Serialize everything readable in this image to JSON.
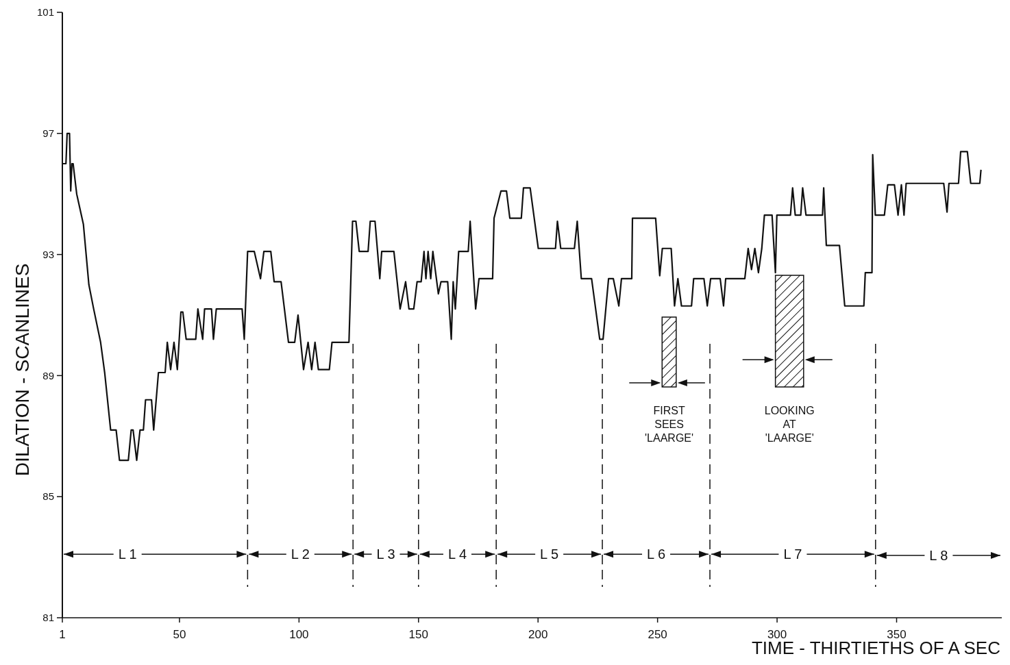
{
  "chart_data": {
    "type": "line",
    "xlabel": "TIME - THIRTIETHS OF A SEC",
    "ylabel": "DILATION - SCANLINES",
    "xlim": [
      1,
      394
    ],
    "xticks": [
      1,
      50,
      100,
      150,
      200,
      250,
      300,
      350
    ],
    "ylim": [
      81,
      101
    ],
    "yticks": [
      81,
      85,
      89,
      93,
      97,
      101
    ],
    "marker": "none",
    "line_style": "solid",
    "series": [
      {
        "color": "#111111",
        "x": [
          1,
          2.5,
          3,
          4,
          4.5,
          5,
          5.5,
          7,
          9.8,
          12.1,
          14.1,
          17,
          18.7,
          21.2,
          23.5,
          24.9,
          28.6,
          29.8,
          30.6,
          32.1,
          33.5,
          34.9,
          35.8,
          38.3,
          39.2,
          41.2,
          44,
          44.9,
          46.3,
          47.7,
          49.1,
          50.6,
          51.4,
          52.8,
          56.8,
          57.7,
          59.7,
          60.5,
          63.4,
          64.2,
          65.4,
          76.2,
          77.1,
          78.5,
          81.3,
          83.9,
          85.3,
          88.2,
          89.6,
          92.5,
          93.9,
          95.6,
          98.2,
          99.6,
          101.9,
          103.8,
          105.3,
          106.7,
          108.1,
          112.7,
          113.8,
          120.9,
          122.4,
          123.8,
          125.2,
          128.9,
          129.8,
          131.8,
          133.8,
          134.6,
          139.7,
          142.3,
          144.6,
          146,
          148,
          149.4,
          151.1,
          152.3,
          153.1,
          154,
          155.1,
          156,
          158.3,
          159.4,
          162.2,
          163.7,
          164.5,
          165.4,
          166.8,
          170.8,
          171.6,
          173.9,
          175.3,
          181,
          181.6,
          184.5,
          186.8,
          188.2,
          193,
          193.9,
          196.7,
          200.1,
          207.3,
          208.1,
          209.5,
          215.2,
          216.4,
          218.1,
          222.4,
          225.8,
          227.2,
          229.5,
          231.5,
          233.8,
          234.9,
          239.2,
          239.5,
          249.2,
          250.9,
          252,
          255.7,
          257.1,
          258.5,
          260,
          264.2,
          265.1,
          269.4,
          270.8,
          272.2,
          276.2,
          277.6,
          278.5,
          286.5,
          287.9,
          289.3,
          290.7,
          292.2,
          293.6,
          294.7,
          297.9,
          299.3,
          299.9,
          305.6,
          306.5,
          307.6,
          309.9,
          310.7,
          312.1,
          319,
          319.5,
          320.6,
          326.1,
          328.3,
          336.3,
          336.9,
          339.7,
          340,
          341.1,
          344.9,
          346.3,
          349.1,
          350.6,
          352,
          353.1,
          354,
          369.7,
          371.1,
          371.9,
          375.9,
          376.8,
          379.6,
          381,
          384.8,
          385.3
        ],
        "values": [
          96,
          96,
          97,
          97,
          95.1,
          96,
          96,
          95,
          94,
          92,
          91.2,
          90.1,
          89.1,
          87.2,
          87.2,
          86.2,
          86.2,
          87.2,
          87.2,
          86.2,
          87.2,
          87.2,
          88.2,
          88.2,
          87.2,
          89.1,
          89.1,
          90.1,
          89.2,
          90.1,
          89.2,
          91.1,
          91.1,
          90.2,
          90.2,
          91.2,
          90.2,
          91.2,
          91.2,
          90.2,
          91.2,
          91.2,
          90.2,
          93.1,
          93.1,
          92.2,
          93.1,
          93.1,
          92.1,
          92.1,
          91.2,
          90.1,
          90.1,
          91,
          89.2,
          90.1,
          89.2,
          90.1,
          89.2,
          89.2,
          90.1,
          90.1,
          94.1,
          94.1,
          93.1,
          93.1,
          94.1,
          94.1,
          92.2,
          93.1,
          93.1,
          91.2,
          92.1,
          91.2,
          91.2,
          92.1,
          92.1,
          93.1,
          92.2,
          93.1,
          92.2,
          93.1,
          91.7,
          92.1,
          92.1,
          90.2,
          92.1,
          91.2,
          93.1,
          93.1,
          94.1,
          91.2,
          92.2,
          92.2,
          94.2,
          95.1,
          95.1,
          94.2,
          94.2,
          95.2,
          95.2,
          93.2,
          93.2,
          94.1,
          93.2,
          93.2,
          94.1,
          92.2,
          92.2,
          90.2,
          90.2,
          92.2,
          92.2,
          91.3,
          92.2,
          92.2,
          94.2,
          94.2,
          92.3,
          93.2,
          93.2,
          91.3,
          92.2,
          91.3,
          91.3,
          92.2,
          92.2,
          91.3,
          92.2,
          92.2,
          91.3,
          92.2,
          92.2,
          93.2,
          92.5,
          93.2,
          92.4,
          93.2,
          94.3,
          94.3,
          92.4,
          94.3,
          94.3,
          95.2,
          94.3,
          94.3,
          95.2,
          94.3,
          94.3,
          95.2,
          93.3,
          93.3,
          91.3,
          91.3,
          92.4,
          92.4,
          96.3,
          94.3,
          94.3,
          95.3,
          95.3,
          94.3,
          95.3,
          94.3,
          95.35,
          95.35,
          94.4,
          95.35,
          95.35,
          96.4,
          96.4,
          95.35,
          95.35,
          95.8
        ]
      }
    ],
    "ref_lines": [
      {
        "axis": "x",
        "value": 78.5,
        "line_style": "dashed"
      },
      {
        "axis": "x",
        "value": 122.6,
        "line_style": "dashed"
      },
      {
        "axis": "x",
        "value": 150,
        "line_style": "dashed"
      },
      {
        "axis": "x",
        "value": 182.5,
        "line_style": "dashed"
      },
      {
        "axis": "x",
        "value": 226.9,
        "line_style": "dashed"
      },
      {
        "axis": "x",
        "value": 271.9,
        "line_style": "dashed"
      },
      {
        "axis": "x",
        "value": 341.2,
        "line_style": "dashed"
      }
    ],
    "annotations": [
      {
        "text": "L 1",
        "x": 78.5,
        "y": 83.1
      },
      {
        "text": "L 2",
        "x": 122.6,
        "y": 83.1
      },
      {
        "text": "L 3",
        "x": 150,
        "y": 83.1
      },
      {
        "text": "L 4",
        "x": 182.5,
        "y": 83.1
      },
      {
        "text": "L 5",
        "x": 226.9,
        "y": 83.1
      },
      {
        "text": "L 6",
        "x": 271.9,
        "y": 83.1
      },
      {
        "text": "L 7",
        "x": 341.2,
        "y": 83.1
      },
      "L 8"
    ],
    "bands": [
      {
        "axis": "x",
        "from": 251.9,
        "to": 257.8,
        "label": "FIRST SEES 'LAARGE'",
        "color": "#111111"
      },
      {
        "axis": "x",
        "from": 299.3,
        "to": 311.1,
        "label": "LOOKING AT 'LAARGE'",
        "color": "#111111"
      }
    ]
  }
}
